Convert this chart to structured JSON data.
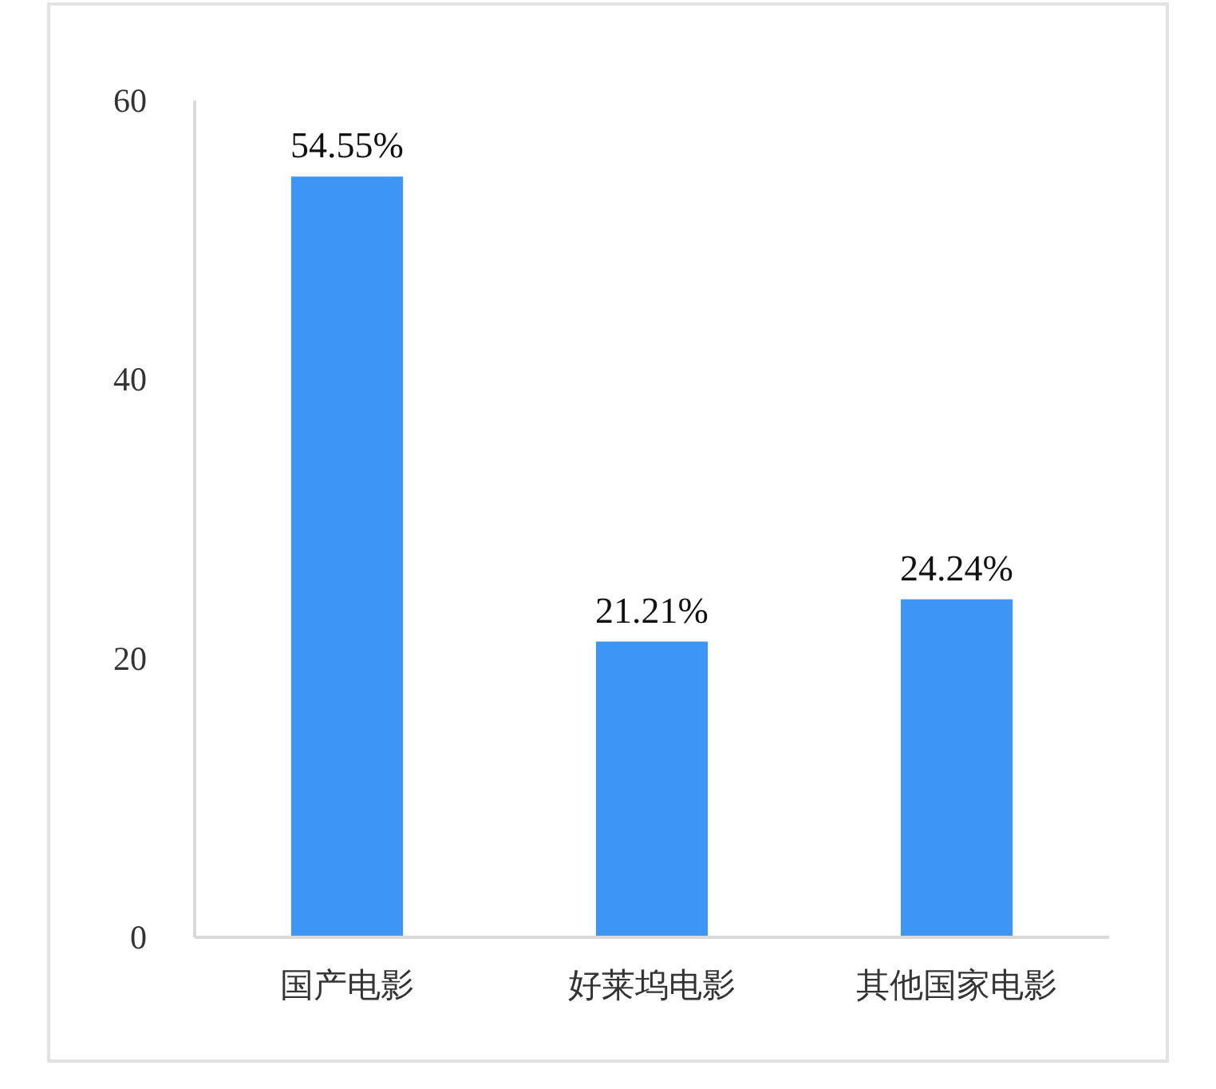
{
  "chart_data": {
    "type": "bar",
    "categories": [
      "国产电影",
      "好莱坞电影",
      "其他国家电影"
    ],
    "values": [
      54.55,
      21.21,
      24.24
    ],
    "color": "#3d95f5",
    "value_labels": [
      "54.55%",
      "21.21%",
      "24.24%"
    ],
    "ylim": [
      0,
      60
    ],
    "yticks": [
      0,
      20,
      40,
      60
    ]
  }
}
